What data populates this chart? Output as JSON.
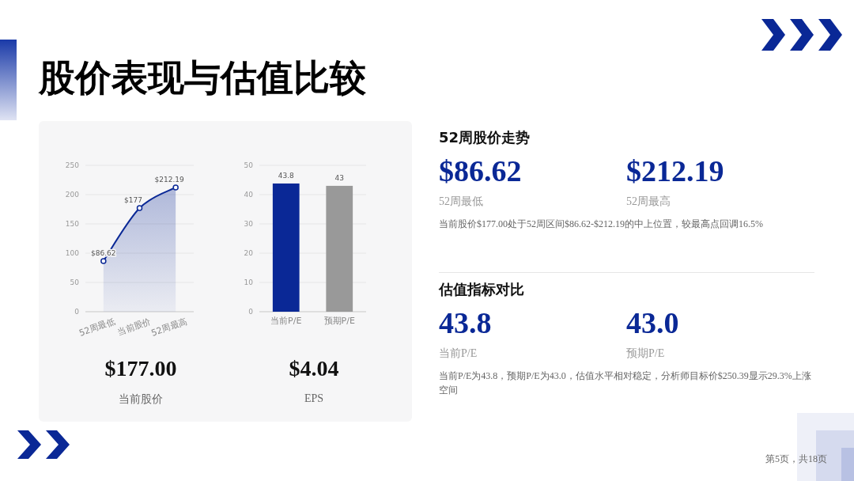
{
  "chart_data": [
    {
      "type": "area",
      "title": "股价表现与估值比较",
      "categories": [
        "52周最低",
        "当前股价",
        "52周最高"
      ],
      "series": [
        {
          "color": "#0a2896",
          "values": [
            86.62,
            177,
            212.19
          ],
          "value_labels": [
            "$86.62",
            "$177",
            "$212.19"
          ]
        }
      ],
      "ylim": [
        0,
        250
      ],
      "yticks": [
        0,
        50,
        100,
        150,
        200,
        250
      ],
      "grid": "y",
      "marker": "circle",
      "annotations": [
        "$177.00",
        "当前股价"
      ]
    },
    {
      "type": "bar",
      "categories": [
        "当前P/E",
        "预期P/E"
      ],
      "values": [
        43.8,
        43
      ],
      "colors": [
        "#0a2896",
        "#999999"
      ],
      "data_labels": true,
      "ylim": [
        0,
        50
      ],
      "yticks": [
        0,
        10,
        20,
        30,
        40,
        50
      ],
      "grid": "y",
      "annotations": [
        "$4.04",
        "EPS"
      ]
    },
    {
      "type": "other",
      "title": "52周股价走势",
      "annotations": [
        "$86.62",
        "52周最低",
        "$212.19",
        "52周最高",
        "当前股价$177.00处于52周区间$86.62-$212.19的中上位置，较最高点回调16.5%"
      ]
    },
    {
      "type": "other",
      "title": "估值指标对比",
      "annotations": [
        "43.8",
        "当前P/E",
        "43.0",
        "预期P/E",
        "当前P/E为43.8，预期P/E为43.0，估值水平相对稳定，分析师目标价$250.39显示29.3%上涨空间",
        "第5页，共18页"
      ]
    }
  ]
}
